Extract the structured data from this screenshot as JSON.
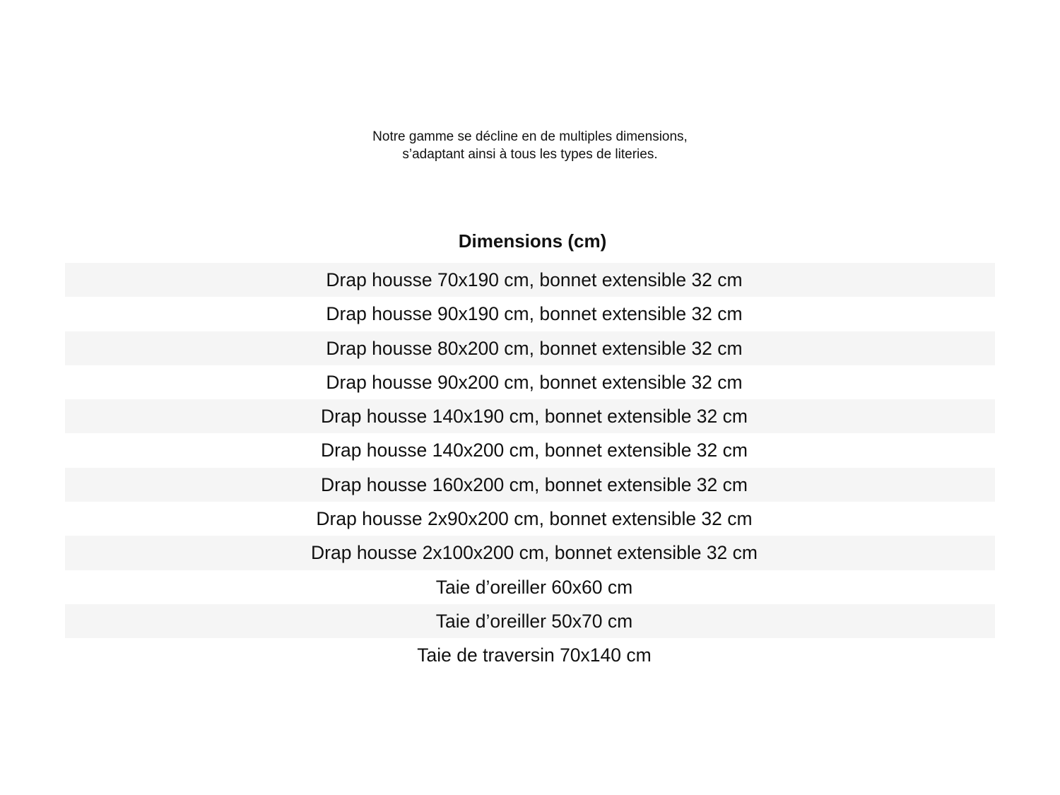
{
  "intro": {
    "line1": "Notre gamme se décline en de multiples dimensions,",
    "line2": "s’adaptant ainsi à tous les types de literies."
  },
  "table": {
    "header": "Dimensions (cm)",
    "rows": [
      "Drap housse 70x190 cm, bonnet extensible 32 cm",
      "Drap housse 90x190 cm, bonnet extensible 32 cm",
      "Drap housse 80x200 cm, bonnet extensible 32 cm",
      "Drap housse 90x200 cm, bonnet extensible 32 cm",
      "Drap housse 140x190 cm, bonnet extensible 32 cm",
      "Drap housse 140x200 cm, bonnet extensible 32 cm",
      "Drap housse 160x200 cm, bonnet extensible 32 cm",
      "Drap housse 2x90x200 cm, bonnet extensible 32 cm",
      "Drap housse 2x100x200 cm, bonnet extensible 32 cm",
      "Taie d’oreiller 60x60 cm",
      "Taie d’oreiller 50x70 cm",
      "Taie de traversin 70x140 cm"
    ],
    "stripe_color": "#f5f5f5"
  }
}
